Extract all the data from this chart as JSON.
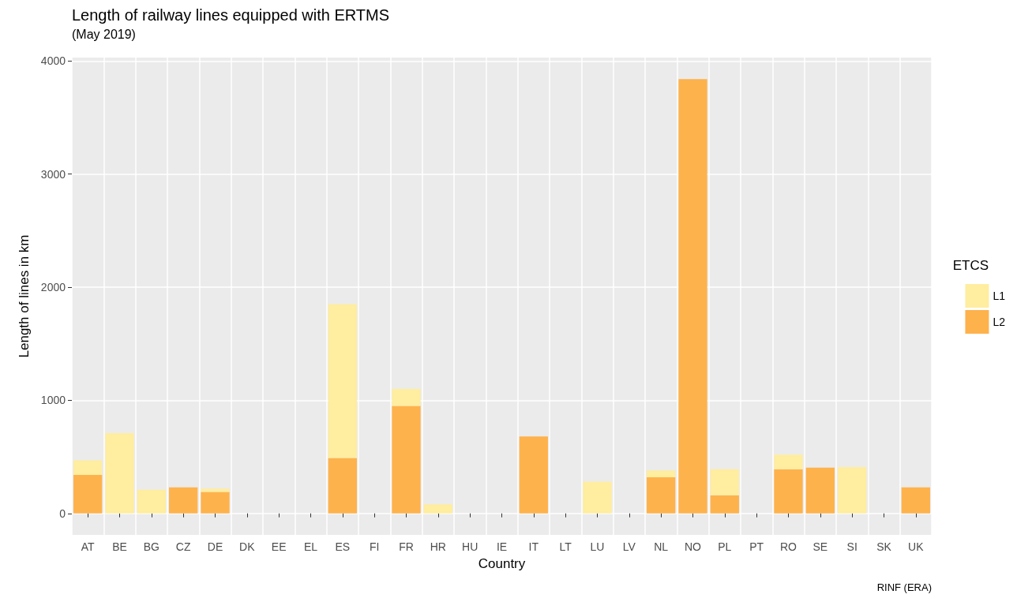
{
  "chart_data": {
    "type": "bar",
    "title": "Length of railway lines equipped with ERTMS",
    "subtitle": "(May 2019)",
    "xlabel": "Country",
    "ylabel": "Length of lines in km",
    "legend_title": "ETCS",
    "annotations": [
      "RINF (ERA)"
    ],
    "categories": [
      "AT",
      "BE",
      "BG",
      "CZ",
      "DE",
      "DK",
      "EE",
      "EL",
      "ES",
      "FI",
      "FR",
      "HR",
      "HU",
      "IE",
      "IT",
      "LT",
      "LU",
      "LV",
      "NL",
      "NO",
      "PL",
      "PT",
      "RO",
      "SE",
      "SI",
      "SK",
      "UK"
    ],
    "stacked": true,
    "series": [
      {
        "name": "L2",
        "color": "#feb24c",
        "values": [
          340,
          null,
          null,
          230,
          190,
          null,
          null,
          null,
          490,
          null,
          950,
          null,
          null,
          null,
          680,
          null,
          null,
          null,
          320,
          3840,
          160,
          null,
          390,
          405,
          null,
          null,
          230
        ]
      },
      {
        "name": "L1",
        "color": "#ffeda0",
        "values": [
          130,
          710,
          210,
          null,
          30,
          null,
          null,
          null,
          1360,
          null,
          150,
          80,
          null,
          null,
          null,
          null,
          280,
          null,
          60,
          null,
          230,
          null,
          130,
          null,
          410,
          null,
          null
        ]
      }
    ],
    "ylim": [
      -190,
      4030
    ],
    "yticks": [
      0,
      1000,
      2000,
      3000,
      4000
    ],
    "grid": true,
    "legend": "right"
  }
}
